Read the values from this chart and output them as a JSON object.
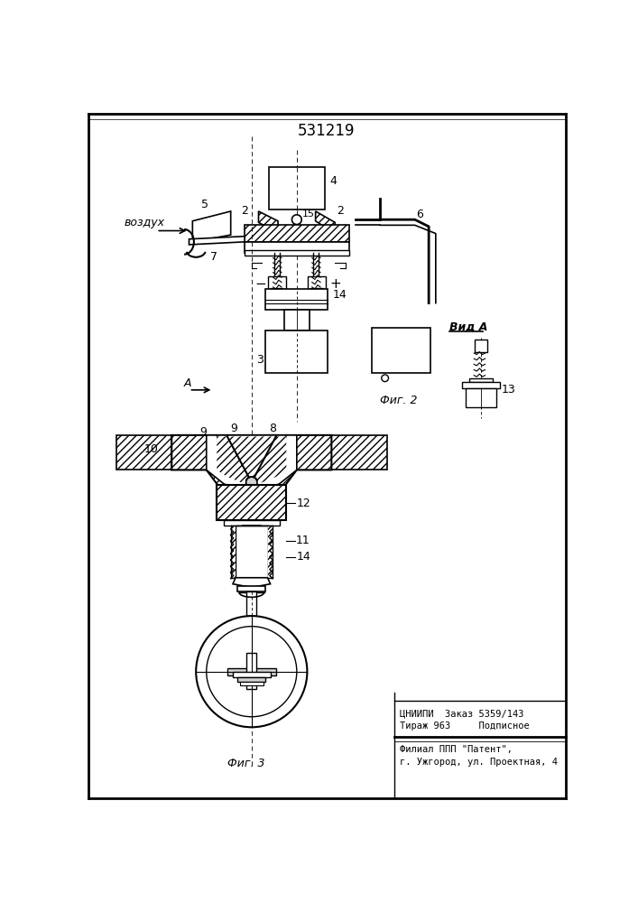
{
  "title": "531219",
  "bg_color": "#ffffff",
  "fig_width": 7.07,
  "fig_height": 10.0,
  "bottom_text_lines": [
    "ЦНИИПИ  Заказ 5359/143",
    "Тираж 963     Подписное",
    "Филиал ППП \"Патент\",",
    "г. Ужгород, ул. Проектная, 4"
  ]
}
